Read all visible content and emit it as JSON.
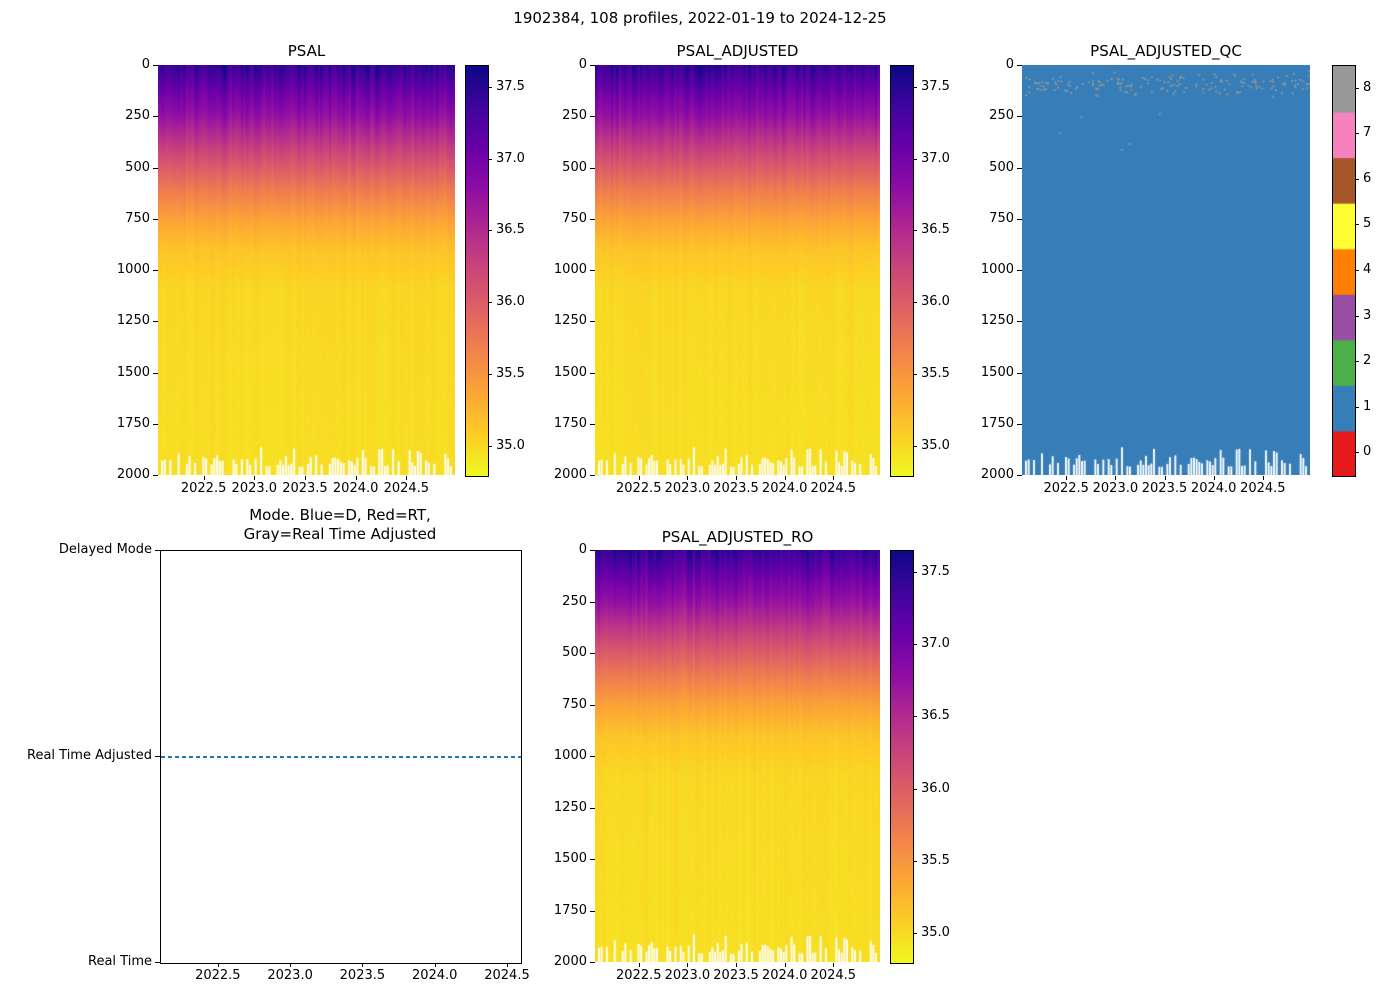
{
  "figure": {
    "title": "1902384, 108 profiles, 2022-01-19 to 2024-12-25",
    "background_color": "#ffffff"
  },
  "chart_data": [
    {
      "type": "heatmap",
      "title": "PSAL",
      "xlabel": "",
      "ylabel": "",
      "x_ticks": [
        "2022.5",
        "2023.0",
        "2023.5",
        "2024.0",
        "2024.5"
      ],
      "y_ticks": [
        "0",
        "250",
        "500",
        "750",
        "1000",
        "1250",
        "1500",
        "1750",
        "2000"
      ],
      "x_range": [
        2022.05,
        2024.98
      ],
      "y_range": [
        0,
        2000
      ],
      "n_profiles": 108,
      "colormap": "plasma_r",
      "colorbar_ticks": [
        "35.0",
        "35.5",
        "36.0",
        "36.5",
        "37.0",
        "37.5"
      ],
      "colorbar_range": [
        34.8,
        37.65
      ],
      "profile": {
        "depth": [
          0,
          50,
          100,
          150,
          250,
          350,
          450,
          600,
          750,
          900,
          1100,
          1400,
          2000
        ],
        "salinity": [
          37.45,
          37.3,
          37.15,
          37.0,
          36.75,
          36.45,
          36.15,
          35.75,
          35.4,
          35.15,
          35.02,
          35.0,
          34.97
        ]
      },
      "missing_data_color": "#ffffff"
    },
    {
      "type": "heatmap",
      "title": "PSAL_ADJUSTED",
      "x_ticks": [
        "2022.5",
        "2023.0",
        "2023.5",
        "2024.0",
        "2024.5"
      ],
      "y_ticks": [
        "0",
        "250",
        "500",
        "750",
        "1000",
        "1250",
        "1500",
        "1750",
        "2000"
      ],
      "x_range": [
        2022.05,
        2024.98
      ],
      "y_range": [
        0,
        2000
      ],
      "n_profiles": 108,
      "colormap": "plasma_r",
      "colorbar_ticks": [
        "35.0",
        "35.5",
        "36.0",
        "36.5",
        "37.0",
        "37.5"
      ],
      "colorbar_range": [
        34.8,
        37.65
      ],
      "profile": {
        "depth": [
          0,
          50,
          100,
          150,
          250,
          350,
          450,
          600,
          750,
          900,
          1100,
          1400,
          2000
        ],
        "salinity": [
          37.45,
          37.3,
          37.15,
          37.0,
          36.75,
          36.45,
          36.15,
          35.75,
          35.4,
          35.15,
          35.02,
          35.0,
          34.97
        ]
      },
      "missing_data_color": "#ffffff"
    },
    {
      "type": "heatmap",
      "title": "PSAL_ADJUSTED_QC",
      "x_ticks": [
        "2022.5",
        "2023.0",
        "2023.5",
        "2024.0",
        "2024.5"
      ],
      "y_ticks": [
        "0",
        "250",
        "500",
        "750",
        "1000",
        "1250",
        "1500",
        "1750",
        "2000"
      ],
      "x_range": [
        2022.05,
        2024.98
      ],
      "y_range": [
        0,
        2000
      ],
      "n_profiles": 108,
      "colormap": "Set1",
      "colorbar_ticks": [
        "0",
        "1",
        "2",
        "3",
        "4",
        "5",
        "6",
        "7",
        "8"
      ],
      "flag_colors": [
        "#e41a1c",
        "#377eb8",
        "#4daf4a",
        "#984ea3",
        "#ff7f00",
        "#ffff33",
        "#a65628",
        "#f781bf",
        "#999999"
      ],
      "dominant_flag": 1,
      "dominant_color": "#377eb8",
      "scatter_flag": {
        "value": 8,
        "color": "#999999"
      },
      "missing_data_color": "#ffffff"
    },
    {
      "type": "line",
      "title": "Mode. Blue=D, Red=RT,\nGray=Real Time Adjusted",
      "title_line1": "Mode. Blue=D, Red=RT,",
      "title_line2": "Gray=Real Time Adjusted",
      "y_categories_top_down": [
        "Delayed Mode",
        "Real Time Adjusted",
        "Real Time"
      ],
      "x_ticks": [
        "2022.5",
        "2023.0",
        "2023.5",
        "2024.0",
        "2024.5"
      ],
      "x_range": [
        2022.1,
        2024.59
      ],
      "line": {
        "value": "Real Time Adjusted",
        "color": "#1f77b4",
        "style": "dashed"
      }
    },
    {
      "type": "heatmap",
      "title": "PSAL_ADJUSTED_RO",
      "x_ticks": [
        "2022.5",
        "2023.0",
        "2023.5",
        "2024.0",
        "2024.5"
      ],
      "y_ticks": [
        "0",
        "250",
        "500",
        "750",
        "1000",
        "1250",
        "1500",
        "1750",
        "2000"
      ],
      "x_range": [
        2022.05,
        2024.98
      ],
      "y_range": [
        0,
        2000
      ],
      "n_profiles": 108,
      "colormap": "plasma_r",
      "colorbar_ticks": [
        "35.0",
        "35.5",
        "36.0",
        "36.5",
        "37.0",
        "37.5"
      ],
      "colorbar_range": [
        34.8,
        37.65
      ],
      "profile": {
        "depth": [
          0,
          50,
          100,
          150,
          250,
          350,
          450,
          600,
          750,
          900,
          1100,
          1400,
          2000
        ],
        "salinity": [
          37.45,
          37.3,
          37.15,
          37.0,
          36.75,
          36.45,
          36.15,
          35.75,
          35.4,
          35.15,
          35.02,
          35.0,
          34.97
        ]
      },
      "missing_data_color": "#ffffff"
    }
  ]
}
